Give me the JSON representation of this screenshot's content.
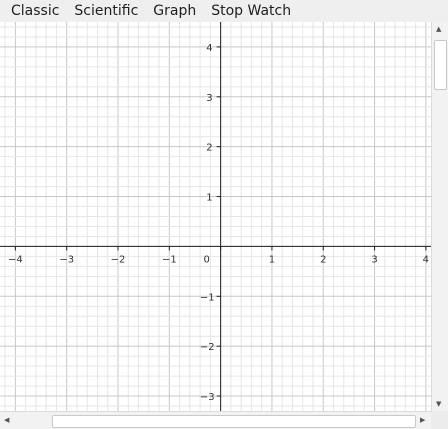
{
  "menu": {
    "items": [
      "Classic",
      "Scientific",
      "Graph",
      "Stop Watch"
    ]
  },
  "chart_data": {
    "type": "line",
    "title": "",
    "xlabel": "",
    "ylabel": "",
    "xlim": [
      -4.3,
      4.1
    ],
    "ylim": [
      -3.3,
      4.5
    ],
    "grid": true,
    "x_ticks": [
      "−4",
      "−3",
      "−2",
      "−1",
      "0",
      "1",
      "2",
      "3",
      "4"
    ],
    "y_ticks_positive": [
      "4",
      "3",
      "2",
      "1"
    ],
    "y_ticks_negative": [
      "−1",
      "−2",
      "−3"
    ],
    "series": []
  },
  "scrollbars": {
    "up": "▲",
    "down": "▼",
    "left": "◀",
    "right": "▶"
  }
}
